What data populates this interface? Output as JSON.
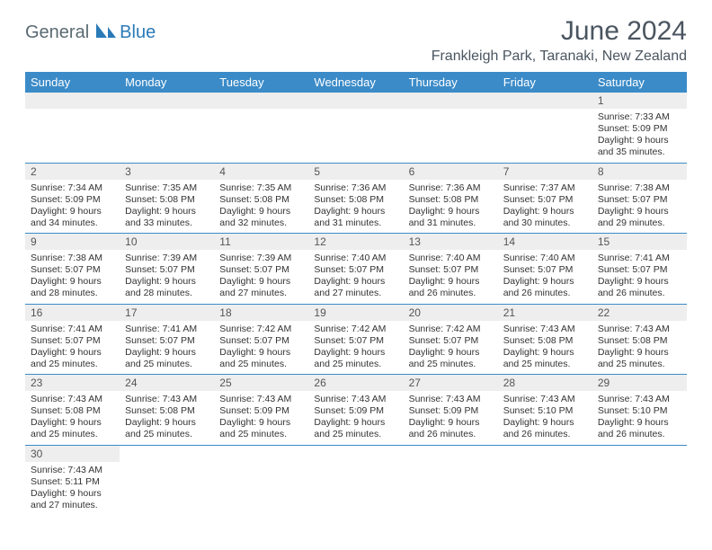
{
  "brand": {
    "gray": "General",
    "blue": "Blue"
  },
  "title": "June 2024",
  "location": "Frankleigh Park, Taranaki, New Zealand",
  "colors": {
    "header_bg": "#3b8bc8",
    "header_fg": "#ffffff",
    "band_bg": "#eeeeee",
    "rule": "#3b8bc8",
    "text": "#333333",
    "title_fg": "#4a5560",
    "logo_gray": "#5a6a72",
    "logo_blue": "#2a7ab8"
  },
  "weekdays": [
    "Sunday",
    "Monday",
    "Tuesday",
    "Wednesday",
    "Thursday",
    "Friday",
    "Saturday"
  ],
  "weeks": [
    [
      null,
      null,
      null,
      null,
      null,
      null,
      {
        "n": "1",
        "sr": "7:33 AM",
        "ss": "5:09 PM",
        "dl": "9 hours and 35 minutes."
      }
    ],
    [
      {
        "n": "2",
        "sr": "7:34 AM",
        "ss": "5:09 PM",
        "dl": "9 hours and 34 minutes."
      },
      {
        "n": "3",
        "sr": "7:35 AM",
        "ss": "5:08 PM",
        "dl": "9 hours and 33 minutes."
      },
      {
        "n": "4",
        "sr": "7:35 AM",
        "ss": "5:08 PM",
        "dl": "9 hours and 32 minutes."
      },
      {
        "n": "5",
        "sr": "7:36 AM",
        "ss": "5:08 PM",
        "dl": "9 hours and 31 minutes."
      },
      {
        "n": "6",
        "sr": "7:36 AM",
        "ss": "5:08 PM",
        "dl": "9 hours and 31 minutes."
      },
      {
        "n": "7",
        "sr": "7:37 AM",
        "ss": "5:07 PM",
        "dl": "9 hours and 30 minutes."
      },
      {
        "n": "8",
        "sr": "7:38 AM",
        "ss": "5:07 PM",
        "dl": "9 hours and 29 minutes."
      }
    ],
    [
      {
        "n": "9",
        "sr": "7:38 AM",
        "ss": "5:07 PM",
        "dl": "9 hours and 28 minutes."
      },
      {
        "n": "10",
        "sr": "7:39 AM",
        "ss": "5:07 PM",
        "dl": "9 hours and 28 minutes."
      },
      {
        "n": "11",
        "sr": "7:39 AM",
        "ss": "5:07 PM",
        "dl": "9 hours and 27 minutes."
      },
      {
        "n": "12",
        "sr": "7:40 AM",
        "ss": "5:07 PM",
        "dl": "9 hours and 27 minutes."
      },
      {
        "n": "13",
        "sr": "7:40 AM",
        "ss": "5:07 PM",
        "dl": "9 hours and 26 minutes."
      },
      {
        "n": "14",
        "sr": "7:40 AM",
        "ss": "5:07 PM",
        "dl": "9 hours and 26 minutes."
      },
      {
        "n": "15",
        "sr": "7:41 AM",
        "ss": "5:07 PM",
        "dl": "9 hours and 26 minutes."
      }
    ],
    [
      {
        "n": "16",
        "sr": "7:41 AM",
        "ss": "5:07 PM",
        "dl": "9 hours and 25 minutes."
      },
      {
        "n": "17",
        "sr": "7:41 AM",
        "ss": "5:07 PM",
        "dl": "9 hours and 25 minutes."
      },
      {
        "n": "18",
        "sr": "7:42 AM",
        "ss": "5:07 PM",
        "dl": "9 hours and 25 minutes."
      },
      {
        "n": "19",
        "sr": "7:42 AM",
        "ss": "5:07 PM",
        "dl": "9 hours and 25 minutes."
      },
      {
        "n": "20",
        "sr": "7:42 AM",
        "ss": "5:07 PM",
        "dl": "9 hours and 25 minutes."
      },
      {
        "n": "21",
        "sr": "7:43 AM",
        "ss": "5:08 PM",
        "dl": "9 hours and 25 minutes."
      },
      {
        "n": "22",
        "sr": "7:43 AM",
        "ss": "5:08 PM",
        "dl": "9 hours and 25 minutes."
      }
    ],
    [
      {
        "n": "23",
        "sr": "7:43 AM",
        "ss": "5:08 PM",
        "dl": "9 hours and 25 minutes."
      },
      {
        "n": "24",
        "sr": "7:43 AM",
        "ss": "5:08 PM",
        "dl": "9 hours and 25 minutes."
      },
      {
        "n": "25",
        "sr": "7:43 AM",
        "ss": "5:09 PM",
        "dl": "9 hours and 25 minutes."
      },
      {
        "n": "26",
        "sr": "7:43 AM",
        "ss": "5:09 PM",
        "dl": "9 hours and 25 minutes."
      },
      {
        "n": "27",
        "sr": "7:43 AM",
        "ss": "5:09 PM",
        "dl": "9 hours and 26 minutes."
      },
      {
        "n": "28",
        "sr": "7:43 AM",
        "ss": "5:10 PM",
        "dl": "9 hours and 26 minutes."
      },
      {
        "n": "29",
        "sr": "7:43 AM",
        "ss": "5:10 PM",
        "dl": "9 hours and 26 minutes."
      }
    ],
    [
      {
        "n": "30",
        "sr": "7:43 AM",
        "ss": "5:11 PM",
        "dl": "9 hours and 27 minutes."
      },
      null,
      null,
      null,
      null,
      null,
      null
    ]
  ],
  "labels": {
    "sunrise": "Sunrise:",
    "sunset": "Sunset:",
    "daylight": "Daylight:"
  }
}
